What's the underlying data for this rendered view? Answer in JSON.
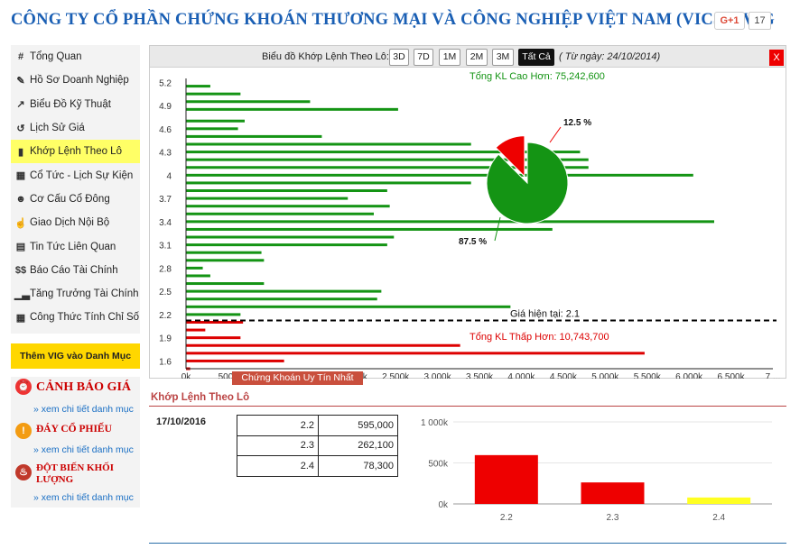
{
  "header": {
    "title": "CÔNG TY CỔ PHẦN CHỨNG KHOÁN THƯƠNG MẠI VÀ CÔNG NGHIỆP VIỆT NAM (VICS) - VIG",
    "gplus_label": "G+1",
    "gplus_count": "17"
  },
  "sidebar": {
    "items": [
      {
        "label": "Tổng Quan",
        "icon": "#"
      },
      {
        "label": "Hồ Sơ Doanh Nghiệp",
        "icon": "✎"
      },
      {
        "label": "Biểu Đồ Kỹ Thuật",
        "icon": "↗"
      },
      {
        "label": "Lịch Sử Giá",
        "icon": "↺"
      },
      {
        "label": "Khớp Lệnh Theo Lô",
        "icon": "▮"
      },
      {
        "label": "Cổ Tức - Lịch Sự Kiện",
        "icon": "▦"
      },
      {
        "label": "Cơ Cấu Cổ Đông",
        "icon": "☻"
      },
      {
        "label": "Giao Dịch Nội Bộ",
        "icon": "☝"
      },
      {
        "label": "Tin Tức Liên Quan",
        "icon": "▤"
      },
      {
        "label": "Báo Cáo Tài Chính",
        "icon": "$$"
      },
      {
        "label": "Tăng Trưởng Tài Chính",
        "icon": "▁▃"
      },
      {
        "label": "Công Thức Tính Chỉ Số",
        "icon": "▦"
      }
    ],
    "add_button": "Thêm VIG vào Danh Mục"
  },
  "alerts": [
    {
      "title": "CẢNH BÁO GIÁ",
      "link": "» xem chi tiết danh mục",
      "icon": "⏰"
    },
    {
      "title": "ĐÁY CỔ PHIẾU",
      "link": "» xem chi tiết danh mục",
      "icon": "!"
    },
    {
      "title": "ĐỘT BIẾN KHỐI LƯỢNG",
      "link": "» xem chi tiết danh mục",
      "icon": "♨"
    }
  ],
  "chart_panel": {
    "toolbar_label": "Biểu đồ Khớp Lệnh Theo Lô:",
    "buttons": [
      "3D",
      "7D",
      "1M",
      "2M",
      "3M",
      "Tất Cả"
    ],
    "active_button": "Tất Cả",
    "date_note": "( Từ ngày: 24/10/2014)",
    "close_label": "X",
    "trusted_label": "Chứng Khoán Uy Tín Nhất"
  },
  "chart_data": [
    {
      "type": "bar",
      "orientation": "horizontal",
      "y_ticks": [
        "5.2",
        "4.9",
        "4.6",
        "4.3",
        "4",
        "3.7",
        "3.4",
        "3.1",
        "2.8",
        "2.5",
        "2.2",
        "1.9",
        "1.6"
      ],
      "x_ticks": [
        "0k",
        "500k",
        "1 000k",
        "1 500k",
        "2 000k",
        "2 500k",
        "3 000k",
        "3 500k",
        "4 000k",
        "4 500k",
        "5 000k",
        "5 500k",
        "6 000k",
        "6 500k",
        "7 ..."
      ],
      "xlim": [
        0,
        7000000
      ],
      "ylim": [
        1.5,
        5.25
      ],
      "current_price_label": "Giá hiện tại: 2.1",
      "current_price": 2.1,
      "higher_label": "Tổng KL Cao Hơn: 75,242,600",
      "lower_label": "Tổng KL Thấp Hơn: 10,743,700",
      "bars": [
        {
          "price": 5.15,
          "volume": 290000,
          "color": "#149414"
        },
        {
          "price": 5.05,
          "volume": 650000,
          "color": "#149414"
        },
        {
          "price": 4.95,
          "volume": 1480000,
          "color": "#149414"
        },
        {
          "price": 4.85,
          "volume": 2530000,
          "color": "#149414"
        },
        {
          "price": 4.7,
          "volume": 700000,
          "color": "#149414"
        },
        {
          "price": 4.6,
          "volume": 620000,
          "color": "#149414"
        },
        {
          "price": 4.5,
          "volume": 1620000,
          "color": "#149414"
        },
        {
          "price": 4.4,
          "volume": 3400000,
          "color": "#149414"
        },
        {
          "price": 4.3,
          "volume": 4700000,
          "color": "#149414"
        },
        {
          "price": 4.2,
          "volume": 4800000,
          "color": "#149414"
        },
        {
          "price": 4.1,
          "volume": 4800000,
          "color": "#149414"
        },
        {
          "price": 4.0,
          "volume": 6050000,
          "color": "#149414"
        },
        {
          "price": 3.9,
          "volume": 3400000,
          "color": "#149414"
        },
        {
          "price": 3.8,
          "volume": 2400000,
          "color": "#149414"
        },
        {
          "price": 3.7,
          "volume": 1930000,
          "color": "#149414"
        },
        {
          "price": 3.6,
          "volume": 2430000,
          "color": "#149414"
        },
        {
          "price": 3.5,
          "volume": 2240000,
          "color": "#149414"
        },
        {
          "price": 3.4,
          "volume": 6300000,
          "color": "#149414"
        },
        {
          "price": 3.3,
          "volume": 4370000,
          "color": "#149414"
        },
        {
          "price": 3.2,
          "volume": 2480000,
          "color": "#149414"
        },
        {
          "price": 3.1,
          "volume": 2400000,
          "color": "#149414"
        },
        {
          "price": 3.0,
          "volume": 900000,
          "color": "#149414"
        },
        {
          "price": 2.9,
          "volume": 930000,
          "color": "#149414"
        },
        {
          "price": 2.8,
          "volume": 200000,
          "color": "#149414"
        },
        {
          "price": 2.7,
          "volume": 290000,
          "color": "#149414"
        },
        {
          "price": 2.6,
          "volume": 930000,
          "color": "#149414"
        },
        {
          "price": 2.5,
          "volume": 2330000,
          "color": "#149414"
        },
        {
          "price": 2.4,
          "volume": 2280000,
          "color": "#149414"
        },
        {
          "price": 2.3,
          "volume": 3870000,
          "color": "#149414"
        },
        {
          "price": 2.2,
          "volume": 650000,
          "color": "#149414"
        },
        {
          "price": 2.1,
          "volume": 680000,
          "color": "#dd0000"
        },
        {
          "price": 2.0,
          "volume": 230000,
          "color": "#dd0000"
        },
        {
          "price": 1.9,
          "volume": 650000,
          "color": "#dd0000"
        },
        {
          "price": 1.8,
          "volume": 3270000,
          "color": "#dd0000"
        },
        {
          "price": 1.7,
          "volume": 5470000,
          "color": "#dd0000"
        },
        {
          "price": 1.6,
          "volume": 1170000,
          "color": "#dd0000"
        },
        {
          "price": 1.5,
          "volume": 50000,
          "color": "#dd0000"
        }
      ]
    },
    {
      "type": "pie",
      "slices": [
        {
          "label": "87.5 %",
          "value": 87.5,
          "color": "#149414"
        },
        {
          "label": "12.5 %",
          "value": 12.5,
          "color": "#ee0000"
        }
      ]
    },
    {
      "type": "bar",
      "categories": [
        "2.2",
        "2.3",
        "2.4"
      ],
      "values": [
        595000,
        262100,
        78300
      ],
      "colors": [
        "#ee0000",
        "#ee0000",
        "#ffff22"
      ],
      "y_ticks": [
        "1 000k",
        "500k",
        "0k"
      ],
      "ylim": [
        0,
        1000000
      ]
    }
  ],
  "lot_section": {
    "title": "Khớp Lệnh Theo Lô",
    "date": "17/10/2016",
    "rows": [
      {
        "price": "2.2",
        "volume": "595,000"
      },
      {
        "price": "2.3",
        "volume": "262,100"
      },
      {
        "price": "2.4",
        "volume": "78,300"
      }
    ]
  }
}
